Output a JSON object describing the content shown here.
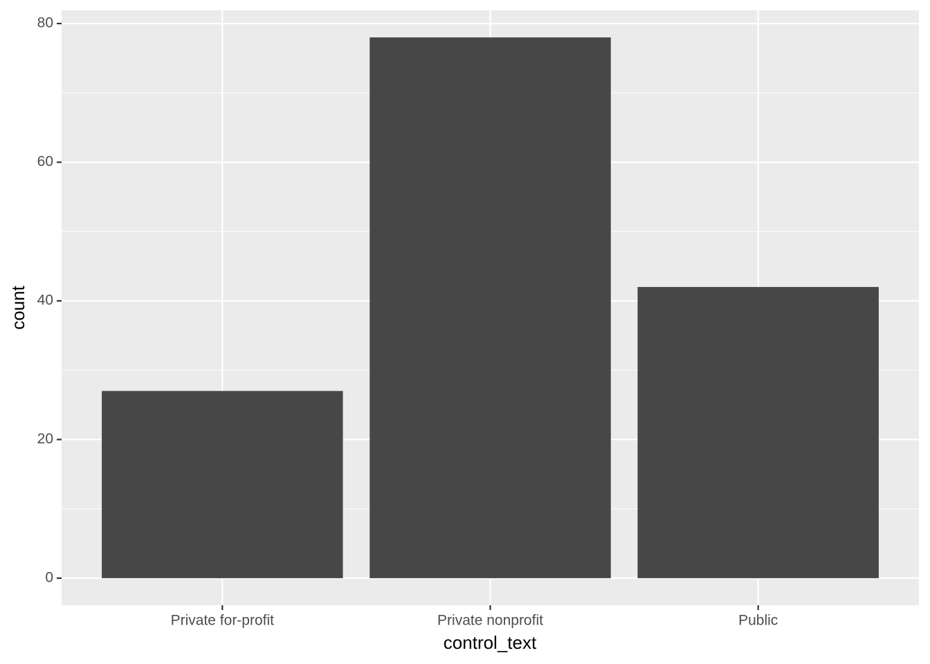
{
  "chart_data": {
    "type": "bar",
    "x_label": "control_text",
    "y_label": "count",
    "categories": [
      "Private for-profit",
      "Private nonprofit",
      "Public"
    ],
    "values": [
      27,
      78,
      42
    ],
    "color": "#474747",
    "ylim": [
      -3.9,
      81.9
    ],
    "yticks": [
      0,
      20,
      40,
      60,
      80
    ],
    "minor_grid": [
      10,
      30,
      50,
      70
    ],
    "grid": true
  }
}
